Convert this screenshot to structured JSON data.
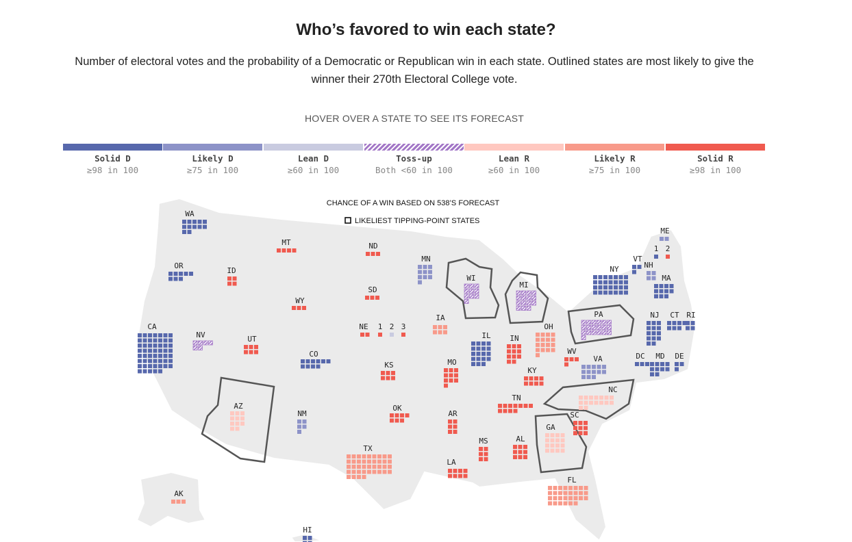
{
  "header": {
    "title": "Who’s favored to win each state?",
    "subtitle": "Number of electoral votes and the probability of a Democratic or Republican win in each state. Outlined states are most likely to give the winner their 270th Electoral College vote.",
    "hover_note": "HOVER OVER A STATE TO SEE ITS FORECAST"
  },
  "legend": [
    {
      "key": "solid_d",
      "label": "Solid D",
      "range": "≥98 in 100",
      "color": "#5768ac"
    },
    {
      "key": "likely_d",
      "label": "Likely D",
      "range": "≥75 in 100",
      "color": "#8d93c8"
    },
    {
      "key": "lean_d",
      "label": "Lean D",
      "range": "≥60 in 100",
      "color": "#c9cbe0"
    },
    {
      "key": "tossup",
      "label": "Toss-up",
      "range": "Both <60 in 100",
      "color": "#a377c7"
    },
    {
      "key": "lean_r",
      "label": "Lean R",
      "range": "≥60 in 100",
      "color": "#ffc8c0"
    },
    {
      "key": "likely_r",
      "label": "Likely R",
      "range": "≥75 in 100",
      "color": "#f89a8a"
    },
    {
      "key": "solid_r",
      "label": "Solid R",
      "range": "≥98 in 100",
      "color": "#f05a4f"
    }
  ],
  "map": {
    "note_title": "CHANCE OF A WIN BASED ON 538’S FORECAST",
    "note_tipping": "LIKELIEST TIPPING-POINT STATES",
    "district_labels": {
      "ne": [
        "1",
        "2",
        "3"
      ],
      "me": [
        "1",
        "2"
      ]
    },
    "states": [
      {
        "abbr": "WA",
        "ev": 12,
        "rating": "solid_d"
      },
      {
        "abbr": "OR",
        "ev": 8,
        "rating": "solid_d"
      },
      {
        "abbr": "CA",
        "ev": 54,
        "rating": "solid_d"
      },
      {
        "abbr": "NV",
        "ev": 6,
        "rating": "tossup"
      },
      {
        "abbr": "ID",
        "ev": 4,
        "rating": "solid_r"
      },
      {
        "abbr": "MT",
        "ev": 4,
        "rating": "solid_r"
      },
      {
        "abbr": "WY",
        "ev": 3,
        "rating": "solid_r"
      },
      {
        "abbr": "UT",
        "ev": 6,
        "rating": "solid_r"
      },
      {
        "abbr": "AZ",
        "ev": 11,
        "rating": "lean_r",
        "tipping": true
      },
      {
        "abbr": "CO",
        "ev": 10,
        "rating": "solid_d"
      },
      {
        "abbr": "NM",
        "ev": 5,
        "rating": "likely_d"
      },
      {
        "abbr": "ND",
        "ev": 3,
        "rating": "solid_r"
      },
      {
        "abbr": "SD",
        "ev": 3,
        "rating": "solid_r"
      },
      {
        "abbr": "NE",
        "ev": 2,
        "rating": "solid_r"
      },
      {
        "abbr": "KS",
        "ev": 6,
        "rating": "solid_r"
      },
      {
        "abbr": "OK",
        "ev": 7,
        "rating": "solid_r"
      },
      {
        "abbr": "TX",
        "ev": 40,
        "rating": "likely_r"
      },
      {
        "abbr": "MN",
        "ev": 10,
        "rating": "likely_d"
      },
      {
        "abbr": "IA",
        "ev": 6,
        "rating": "likely_r"
      },
      {
        "abbr": "MO",
        "ev": 10,
        "rating": "solid_r"
      },
      {
        "abbr": "AR",
        "ev": 6,
        "rating": "solid_r"
      },
      {
        "abbr": "LA",
        "ev": 8,
        "rating": "solid_r"
      },
      {
        "abbr": "WI",
        "ev": 10,
        "rating": "tossup",
        "tipping": true
      },
      {
        "abbr": "IL",
        "ev": 19,
        "rating": "solid_d"
      },
      {
        "abbr": "MI",
        "ev": 15,
        "rating": "tossup",
        "tipping": true
      },
      {
        "abbr": "IN",
        "ev": 11,
        "rating": "solid_r"
      },
      {
        "abbr": "OH",
        "ev": 17,
        "rating": "likely_r"
      },
      {
        "abbr": "KY",
        "ev": 8,
        "rating": "solid_r"
      },
      {
        "abbr": "TN",
        "ev": 11,
        "rating": "solid_r"
      },
      {
        "abbr": "MS",
        "ev": 6,
        "rating": "solid_r"
      },
      {
        "abbr": "AL",
        "ev": 9,
        "rating": "solid_r"
      },
      {
        "abbr": "GA",
        "ev": 16,
        "rating": "lean_r",
        "tipping": true
      },
      {
        "abbr": "FL",
        "ev": 30,
        "rating": "likely_r"
      },
      {
        "abbr": "SC",
        "ev": 9,
        "rating": "solid_r"
      },
      {
        "abbr": "NC",
        "ev": 16,
        "rating": "lean_r",
        "tipping": true
      },
      {
        "abbr": "VA",
        "ev": 13,
        "rating": "likely_d"
      },
      {
        "abbr": "WV",
        "ev": 4,
        "rating": "solid_r"
      },
      {
        "abbr": "PA",
        "ev": 19,
        "rating": "tossup",
        "tipping": true
      },
      {
        "abbr": "NY",
        "ev": 28,
        "rating": "solid_d"
      },
      {
        "abbr": "VT",
        "ev": 3,
        "rating": "solid_d"
      },
      {
        "abbr": "NH",
        "ev": 4,
        "rating": "likely_d"
      },
      {
        "abbr": "ME",
        "ev": 2,
        "rating": "likely_d"
      },
      {
        "abbr": "MA",
        "ev": 11,
        "rating": "solid_d"
      },
      {
        "abbr": "RI",
        "ev": 4,
        "rating": "solid_d"
      },
      {
        "abbr": "CT",
        "ev": 7,
        "rating": "solid_d"
      },
      {
        "abbr": "NJ",
        "ev": 14,
        "rating": "solid_d"
      },
      {
        "abbr": "DE",
        "ev": 3,
        "rating": "solid_d"
      },
      {
        "abbr": "MD",
        "ev": 10,
        "rating": "solid_d"
      },
      {
        "abbr": "DC",
        "ev": 3,
        "rating": "solid_d"
      },
      {
        "abbr": "AK",
        "ev": 3,
        "rating": "likely_r"
      },
      {
        "abbr": "HI",
        "ev": 4,
        "rating": "solid_d"
      }
    ]
  }
}
